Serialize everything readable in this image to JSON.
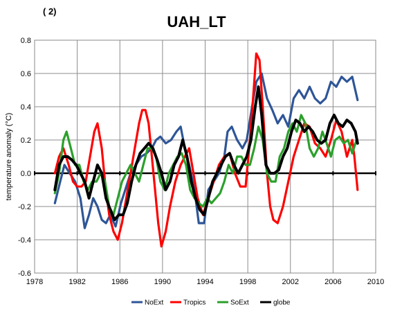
{
  "panel_label": "( 2)",
  "chart_data": {
    "type": "line",
    "title": "UAH_LT",
    "xlabel": "",
    "ylabel": "temperature anomaly  (°C)",
    "xlim": [
      1978,
      2010
    ],
    "ylim": [
      -0.6,
      0.8
    ],
    "xticks": [
      1978,
      1982,
      1986,
      1990,
      1994,
      1998,
      2002,
      2006,
      2010
    ],
    "yticks": [
      -0.6,
      -0.4,
      -0.2,
      0.0,
      0.2,
      0.4,
      0.6,
      0.8
    ],
    "ytick_labels": [
      "-0.6",
      "-0.4",
      "-0.2",
      "0.0",
      "0.2",
      "0.4",
      "0.6",
      "0.8"
    ],
    "grid": true,
    "legend_position": "bottom",
    "series": [
      {
        "name": "NoExt",
        "color": "#2e5597",
        "x": [
          1979.9,
          1980.4,
          1980.8,
          1981.3,
          1981.8,
          1982.3,
          1982.7,
          1983.1,
          1983.5,
          1983.9,
          1984.3,
          1984.7,
          1985.1,
          1985.6,
          1986.1,
          1986.5,
          1987.0,
          1987.5,
          1988.0,
          1988.5,
          1989.0,
          1989.4,
          1989.8,
          1990.3,
          1990.8,
          1991.3,
          1991.7,
          1992.1,
          1992.5,
          1993.0,
          1993.4,
          1993.9,
          1994.3,
          1994.8,
          1995.3,
          1995.8,
          1996.1,
          1996.5,
          1997.0,
          1997.5,
          1997.9,
          1998.4,
          1998.8,
          1999.3,
          1999.8,
          2000.3,
          2000.8,
          2001.3,
          2001.8,
          2002.3,
          2002.8,
          2003.3,
          2003.8,
          2004.3,
          2004.8,
          2005.3,
          2005.8,
          2006.3,
          2006.8,
          2007.3,
          2007.8,
          2008.3
        ],
        "y": [
          -0.18,
          -0.05,
          0.05,
          0.0,
          -0.05,
          -0.15,
          -0.33,
          -0.25,
          -0.15,
          -0.2,
          -0.28,
          -0.3,
          -0.25,
          -0.32,
          -0.18,
          -0.1,
          0.0,
          0.05,
          0.1,
          0.12,
          0.15,
          0.2,
          0.22,
          0.18,
          0.2,
          0.25,
          0.28,
          0.15,
          0.05,
          -0.1,
          -0.3,
          -0.3,
          -0.1,
          -0.05,
          0.0,
          0.1,
          0.25,
          0.28,
          0.2,
          0.15,
          0.2,
          0.4,
          0.55,
          0.6,
          0.45,
          0.38,
          0.3,
          0.35,
          0.28,
          0.45,
          0.5,
          0.45,
          0.52,
          0.45,
          0.42,
          0.45,
          0.55,
          0.52,
          0.58,
          0.55,
          0.58,
          0.44
        ]
      },
      {
        "name": "Tropics",
        "color": "#ff0000",
        "x": [
          1979.9,
          1980.3,
          1980.7,
          1981.2,
          1981.6,
          1982.0,
          1982.4,
          1982.8,
          1983.2,
          1983.6,
          1983.9,
          1984.3,
          1984.6,
          1985.0,
          1985.4,
          1985.8,
          1986.2,
          1986.6,
          1987.0,
          1987.4,
          1987.8,
          1988.1,
          1988.4,
          1988.7,
          1989.0,
          1989.3,
          1989.6,
          1989.9,
          1990.3,
          1990.7,
          1991.2,
          1991.7,
          1992.1,
          1992.5,
          1992.9,
          1993.3,
          1993.8,
          1994.3,
          1994.8,
          1995.3,
          1995.8,
          1996.3,
          1996.8,
          1997.3,
          1997.8,
          1998.2,
          1998.5,
          1998.8,
          1999.1,
          1999.4,
          1999.8,
          2000.1,
          2000.4,
          2000.8,
          2001.3,
          2001.8,
          2002.3,
          2002.8,
          2003.3,
          2003.8,
          2004.3,
          2004.8,
          2005.3,
          2005.8,
          2006.3,
          2006.8,
          2007.3,
          2007.8,
          2008.0,
          2008.3
        ],
        "y": [
          0.0,
          0.1,
          0.15,
          0.05,
          -0.05,
          -0.08,
          -0.08,
          -0.05,
          0.1,
          0.25,
          0.3,
          0.15,
          -0.05,
          -0.25,
          -0.35,
          -0.4,
          -0.3,
          -0.15,
          0.0,
          0.15,
          0.3,
          0.38,
          0.38,
          0.3,
          0.1,
          -0.1,
          -0.3,
          -0.44,
          -0.35,
          -0.2,
          -0.05,
          0.05,
          0.1,
          0.15,
          0.0,
          -0.15,
          -0.25,
          -0.15,
          -0.05,
          0.05,
          0.1,
          0.12,
          0.0,
          -0.08,
          -0.08,
          0.2,
          0.45,
          0.72,
          0.68,
          0.4,
          0.0,
          -0.2,
          -0.28,
          -0.3,
          -0.2,
          -0.05,
          0.1,
          0.2,
          0.3,
          0.28,
          0.18,
          0.15,
          0.1,
          0.2,
          0.32,
          0.25,
          0.1,
          0.2,
          0.1,
          -0.1
        ]
      },
      {
        "name": "SoExt",
        "color": "#2ba02b",
        "x": [
          1979.9,
          1980.3,
          1980.7,
          1981.0,
          1981.4,
          1981.8,
          1982.2,
          1982.6,
          1983.0,
          1983.4,
          1983.8,
          1984.2,
          1984.6,
          1985.0,
          1985.4,
          1985.8,
          1986.2,
          1986.6,
          1987.0,
          1987.4,
          1987.8,
          1988.2,
          1988.6,
          1989.0,
          1989.4,
          1989.8,
          1990.2,
          1990.6,
          1991.0,
          1991.4,
          1991.8,
          1992.2,
          1992.6,
          1993.0,
          1993.4,
          1993.8,
          1994.2,
          1994.6,
          1995.0,
          1995.4,
          1995.8,
          1996.2,
          1996.6,
          1997.0,
          1997.4,
          1997.8,
          1998.2,
          1998.6,
          1999.0,
          1999.4,
          1999.8,
          2000.2,
          2000.6,
          2001.0,
          2001.4,
          2001.8,
          2002.2,
          2002.6,
          2003.0,
          2003.4,
          2003.8,
          2004.2,
          2004.6,
          2005.0,
          2005.4,
          2005.8,
          2006.2,
          2006.6,
          2007.0,
          2007.4,
          2007.8,
          2008.2
        ],
        "y": [
          -0.12,
          0.0,
          0.2,
          0.25,
          0.15,
          0.05,
          0.05,
          -0.05,
          -0.1,
          -0.05,
          -0.05,
          0.0,
          -0.05,
          -0.2,
          -0.25,
          -0.15,
          -0.05,
          0.0,
          0.05,
          0.0,
          -0.05,
          0.05,
          0.15,
          0.15,
          0.1,
          -0.05,
          -0.1,
          0.0,
          0.05,
          0.1,
          0.12,
          0.05,
          -0.1,
          -0.15,
          -0.18,
          -0.2,
          -0.15,
          -0.18,
          -0.15,
          -0.12,
          -0.05,
          0.05,
          0.0,
          0.1,
          0.1,
          0.05,
          0.05,
          0.15,
          0.28,
          0.2,
          0.0,
          -0.05,
          -0.05,
          0.1,
          0.15,
          0.25,
          0.3,
          0.25,
          0.35,
          0.3,
          0.15,
          0.1,
          0.15,
          0.25,
          0.18,
          0.1,
          0.2,
          0.22,
          0.18,
          0.2,
          0.12,
          0.2
        ]
      },
      {
        "name": "globe",
        "color": "#000000",
        "x": [
          1979.9,
          1980.3,
          1980.7,
          1981.1,
          1981.5,
          1981.9,
          1982.3,
          1982.7,
          1983.1,
          1983.5,
          1983.9,
          1984.3,
          1984.7,
          1985.1,
          1985.5,
          1985.9,
          1986.3,
          1986.7,
          1987.1,
          1987.5,
          1987.9,
          1988.3,
          1988.7,
          1989.1,
          1989.5,
          1989.9,
          1990.3,
          1990.7,
          1991.1,
          1991.5,
          1991.9,
          1992.3,
          1992.7,
          1993.1,
          1993.5,
          1993.9,
          1994.3,
          1994.7,
          1995.1,
          1995.5,
          1995.9,
          1996.3,
          1996.7,
          1997.1,
          1997.5,
          1997.9,
          1998.3,
          1998.7,
          1999.0,
          1999.3,
          1999.7,
          2000.1,
          2000.5,
          2000.9,
          2001.3,
          2001.7,
          2002.1,
          2002.5,
          2002.9,
          2003.3,
          2003.7,
          2004.1,
          2004.5,
          2004.9,
          2005.3,
          2005.7,
          2006.1,
          2006.5,
          2006.9,
          2007.3,
          2007.7,
          2008.1,
          2008.3
        ],
        "y": [
          -0.1,
          0.05,
          0.1,
          0.1,
          0.08,
          0.05,
          0.0,
          -0.05,
          -0.15,
          -0.05,
          0.05,
          0.0,
          -0.15,
          -0.22,
          -0.28,
          -0.25,
          -0.25,
          -0.18,
          -0.05,
          0.05,
          0.12,
          0.15,
          0.18,
          0.15,
          0.08,
          0.0,
          -0.1,
          -0.05,
          0.05,
          0.1,
          0.2,
          0.1,
          -0.05,
          -0.15,
          -0.22,
          -0.25,
          -0.15,
          -0.05,
          0.0,
          0.05,
          0.1,
          0.12,
          0.05,
          0.0,
          0.05,
          0.1,
          0.2,
          0.4,
          0.52,
          0.35,
          0.05,
          0.0,
          0.0,
          0.02,
          0.1,
          0.15,
          0.25,
          0.32,
          0.3,
          0.25,
          0.28,
          0.25,
          0.2,
          0.18,
          0.2,
          0.3,
          0.35,
          0.3,
          0.28,
          0.32,
          0.3,
          0.25,
          0.18
        ]
      }
    ]
  }
}
